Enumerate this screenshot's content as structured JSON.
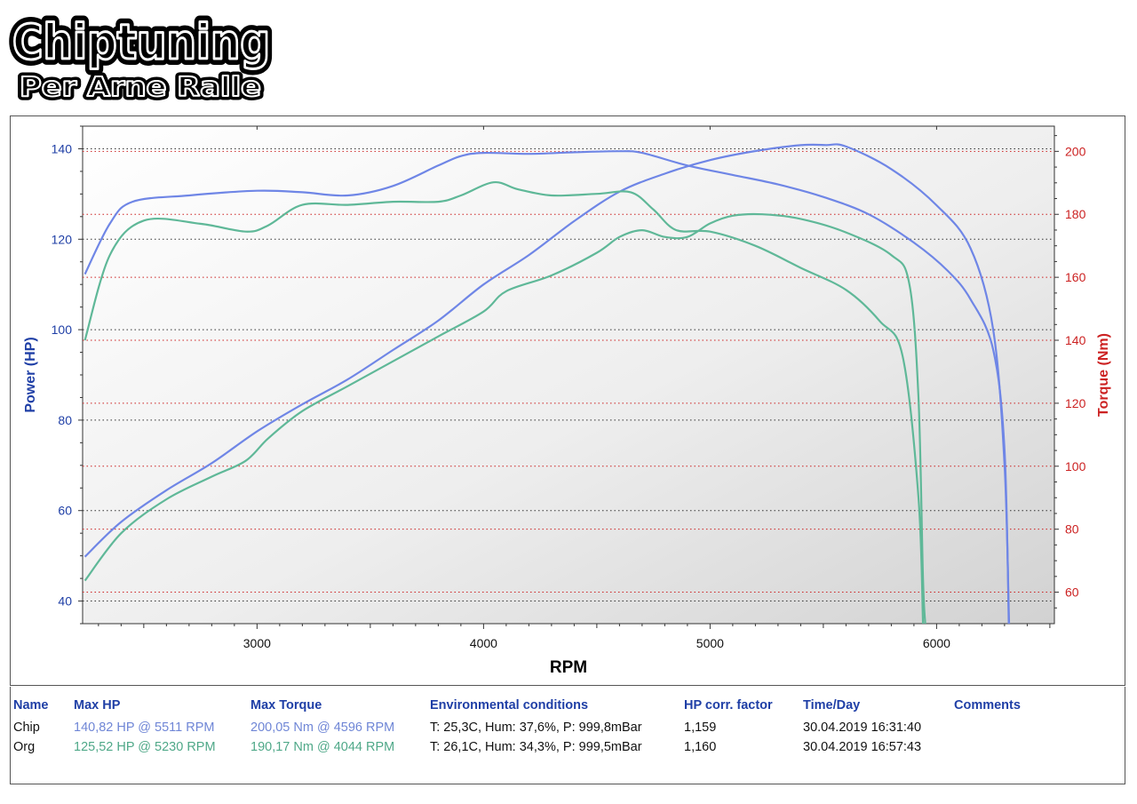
{
  "logo": {
    "line1": "Chiptuning",
    "line2": "Per Arne Ralle"
  },
  "chart_data": {
    "type": "line",
    "xlabel": "RPM",
    "ylabel_left": "Power (HP)",
    "ylabel_right": "Torque (Nm)",
    "xlim": [
      2230,
      6520
    ],
    "ylim_left": [
      35,
      145
    ],
    "ylim_right": [
      50,
      208
    ],
    "xticks": [
      3000,
      4000,
      5000,
      6000
    ],
    "yticks_left": [
      40,
      60,
      80,
      100,
      120,
      140
    ],
    "yticks_right": [
      60,
      80,
      100,
      120,
      140,
      160,
      180,
      200
    ],
    "grid": true,
    "colors": {
      "chip": "#6f86e6",
      "org": "#5fb898",
      "left_axis": "#1f3fa6",
      "right_axis": "#cc2222"
    },
    "series": [
      {
        "name": "Chip",
        "kind": "power",
        "axis": "left",
        "color": "#6f86e6",
        "points": [
          [
            2240,
            49.8
          ],
          [
            2400,
            57.5
          ],
          [
            2600,
            64.5
          ],
          [
            2800,
            70.5
          ],
          [
            3000,
            77.5
          ],
          [
            3200,
            83.5
          ],
          [
            3400,
            89
          ],
          [
            3600,
            95.5
          ],
          [
            3800,
            102
          ],
          [
            4000,
            110
          ],
          [
            4200,
            116.5
          ],
          [
            4400,
            124
          ],
          [
            4600,
            130.5
          ],
          [
            4800,
            134.5
          ],
          [
            5000,
            137.5
          ],
          [
            5200,
            139.5
          ],
          [
            5400,
            140.8
          ],
          [
            5511,
            140.82
          ],
          [
            5600,
            140.5
          ],
          [
            5800,
            135.5
          ],
          [
            6000,
            127.5
          ],
          [
            6150,
            118
          ],
          [
            6250,
            100
          ],
          [
            6300,
            70
          ],
          [
            6320,
            35
          ]
        ]
      },
      {
        "name": "Chip",
        "kind": "torque",
        "axis": "right",
        "color": "#6f86e6",
        "points": [
          [
            2240,
            161
          ],
          [
            2350,
            177
          ],
          [
            2450,
            184
          ],
          [
            2700,
            186
          ],
          [
            3000,
            187.5
          ],
          [
            3200,
            187
          ],
          [
            3400,
            186
          ],
          [
            3600,
            189
          ],
          [
            3800,
            195.5
          ],
          [
            3900,
            198.5
          ],
          [
            4000,
            199.5
          ],
          [
            4200,
            199.2
          ],
          [
            4400,
            199.7
          ],
          [
            4596,
            200.05
          ],
          [
            4700,
            199.5
          ],
          [
            4900,
            195.5
          ],
          [
            5100,
            192.5
          ],
          [
            5300,
            189.5
          ],
          [
            5500,
            185.5
          ],
          [
            5700,
            180
          ],
          [
            5900,
            171
          ],
          [
            6050,
            162
          ],
          [
            6150,
            153
          ],
          [
            6250,
            137
          ],
          [
            6300,
            105
          ],
          [
            6320,
            45
          ]
        ]
      },
      {
        "name": "Org",
        "kind": "power",
        "axis": "left",
        "color": "#5fb898",
        "points": [
          [
            2240,
            44.5
          ],
          [
            2400,
            55
          ],
          [
            2600,
            62.5
          ],
          [
            2800,
            67.5
          ],
          [
            2950,
            71
          ],
          [
            3050,
            76
          ],
          [
            3200,
            82
          ],
          [
            3400,
            87.5
          ],
          [
            3600,
            93
          ],
          [
            3800,
            98.5
          ],
          [
            4000,
            104
          ],
          [
            4100,
            108.5
          ],
          [
            4300,
            112
          ],
          [
            4500,
            117
          ],
          [
            4600,
            120.5
          ],
          [
            4700,
            122
          ],
          [
            4800,
            120.5
          ],
          [
            4900,
            120.5
          ],
          [
            5000,
            123.5
          ],
          [
            5100,
            125.2
          ],
          [
            5230,
            125.52
          ],
          [
            5400,
            124.5
          ],
          [
            5600,
            121.5
          ],
          [
            5800,
            116.5
          ],
          [
            5880,
            110
          ],
          [
            5920,
            85
          ],
          [
            5940,
            45
          ],
          [
            5950,
            35
          ]
        ]
      },
      {
        "name": "Org",
        "kind": "torque",
        "axis": "right",
        "color": "#5fb898",
        "points": [
          [
            2240,
            140
          ],
          [
            2350,
            167
          ],
          [
            2500,
            178
          ],
          [
            2750,
            177
          ],
          [
            2950,
            174.5
          ],
          [
            3050,
            176.5
          ],
          [
            3200,
            183
          ],
          [
            3400,
            183
          ],
          [
            3600,
            184
          ],
          [
            3800,
            184
          ],
          [
            3900,
            186
          ],
          [
            4044,
            190.17
          ],
          [
            4150,
            188
          ],
          [
            4300,
            186
          ],
          [
            4500,
            186.5
          ],
          [
            4650,
            187
          ],
          [
            4750,
            181.5
          ],
          [
            4850,
            175
          ],
          [
            5000,
            174.5
          ],
          [
            5200,
            170
          ],
          [
            5400,
            163
          ],
          [
            5600,
            156
          ],
          [
            5750,
            146
          ],
          [
            5850,
            135
          ],
          [
            5920,
            90
          ],
          [
            5940,
            50
          ]
        ]
      }
    ]
  },
  "table": {
    "headers": {
      "name": "Name",
      "max_hp": "Max HP",
      "max_torque": "Max Torque",
      "env": "Environmental conditions",
      "corr": "HP corr. factor",
      "time": "Time/Day",
      "comments": "Comments"
    },
    "rows": [
      {
        "name": "Chip",
        "max_hp": "140,82 HP @ 5511 RPM",
        "max_torque": "200,05 Nm @ 4596 RPM",
        "env": "T: 25,3C, Hum: 37,6%, P: 999,8mBar",
        "corr": "1,159",
        "time": "30.04.2019 16:31:40",
        "comments": ""
      },
      {
        "name": "Org",
        "max_hp": "125,52 HP @ 5230 RPM",
        "max_torque": "190,17 Nm @ 4044 RPM",
        "env": "T: 26,1C, Hum: 34,3%, P: 999,5mBar",
        "corr": "1,160",
        "time": "30.04.2019 16:57:43",
        "comments": ""
      }
    ]
  }
}
